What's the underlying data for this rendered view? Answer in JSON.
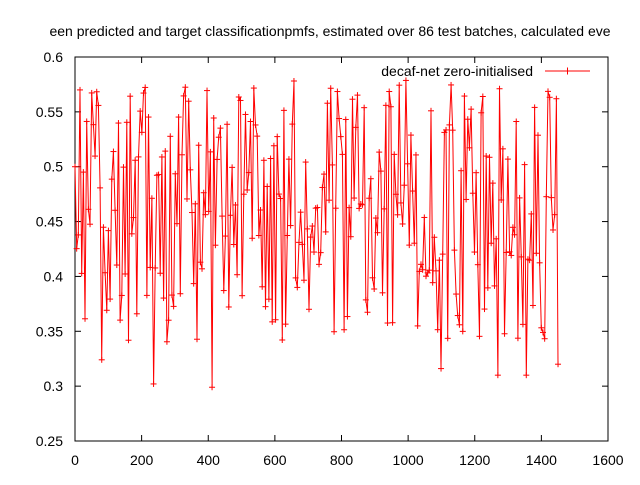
{
  "chart_data": {
    "type": "line",
    "title": "een predicted and target classificationpmfs, estimated over 86 test batches, calculated eve",
    "xlabel": "",
    "ylabel": "",
    "xlim": [
      0,
      1600
    ],
    "ylim": [
      0.25,
      0.6
    ],
    "xticks": [
      "0",
      "200",
      "400",
      "600",
      "800",
      "1000",
      "1200",
      "1400",
      "1600"
    ],
    "yticks": [
      "0.25",
      "0.3",
      "0.35",
      "0.4",
      "0.45",
      "0.5",
      "0.55",
      "0.6"
    ],
    "grid": false,
    "legend_position": "top-right",
    "series": [
      {
        "name": "decaf-net zero-initialised",
        "color": "#ff0000",
        "marker": "plus",
        "x_start": 0,
        "x_end": 1450,
        "point_count": 290,
        "value_range": [
          0.3,
          0.58
        ],
        "typical_range": [
          0.4,
          0.52
        ],
        "central_value": 0.47,
        "notable_points": [
          {
            "x": 0,
            "y": 0.5
          },
          {
            "x": 15,
            "y": 0.57
          },
          {
            "x": 80,
            "y": 0.324
          },
          {
            "x": 235,
            "y": 0.302
          },
          {
            "x": 410,
            "y": 0.299
          },
          {
            "x": 1100,
            "y": 0.316
          },
          {
            "x": 1270,
            "y": 0.31
          },
          {
            "x": 1355,
            "y": 0.31
          },
          {
            "x": 1450,
            "y": 0.32
          }
        ]
      }
    ]
  }
}
